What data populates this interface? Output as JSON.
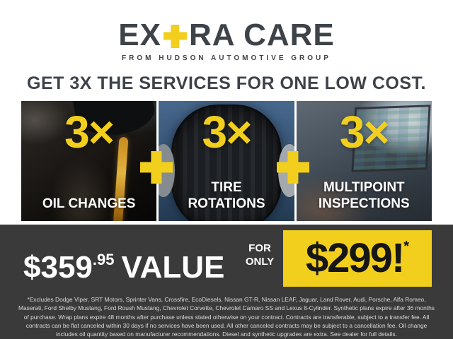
{
  "brand": {
    "logo_part1": "EX",
    "logo_part2": "RA CARE",
    "tagline": "FROM HUDSON AUTOMOTIVE GROUP"
  },
  "headline": "GET 3X THE SERVICES FOR ONE LOW COST.",
  "services": [
    {
      "multiplier": "3×",
      "label": "OIL CHANGES",
      "photo": "oil-change-photo"
    },
    {
      "multiplier": "3×",
      "label": "TIRE ROTATIONS",
      "photo": "tire-rotation-photo"
    },
    {
      "multiplier": "3×",
      "label": "MULTIPOINT INSPECTIONS",
      "photo": "multipoint-inspection-photo"
    }
  ],
  "icons": {
    "logo_plus_icon": "+",
    "separator_plus_icon": "+"
  },
  "offer": {
    "value_amount": "$359",
    "value_cents": ".95",
    "value_word": "VALUE",
    "connector_line1": "FOR",
    "connector_line2": "ONLY",
    "sale_price": "$299!",
    "sale_asterisk": "*"
  },
  "disclaimer": "*Excludes Dodge Viper, SRT Motors, Sprinter Vans, Crossfire, EcoDiesels, Nissan GT-R, Nissan LEAF, Jaguar, Land Rover, Audi, Porsche, Alfa Romeo, Maserati, Ford Shelby Mustang, Ford Roush Mustang, Chevrolet Corvette, Chevrolet Camaro SS and Lexus 8-Cylinder. Synthetic plans expire after 36 months of purchase. Wrap plans expire 48 months after purchase unless stated otherwise on your contract. Contracts are transferable, subject to a transfer fee. All contracts can be flat canceled within 30 days if no services have been used. All other canceled contracts may be subject to a cancellation fee. Oil change includes oil quantity based on manufacturer recommendations. Diesel and synthetic upgrades are extra. See dealer for full details.",
  "colors": {
    "accent_yellow": "#F2CF1D",
    "charcoal_text": "#3E4349",
    "band_background": "#3A3A3A"
  }
}
